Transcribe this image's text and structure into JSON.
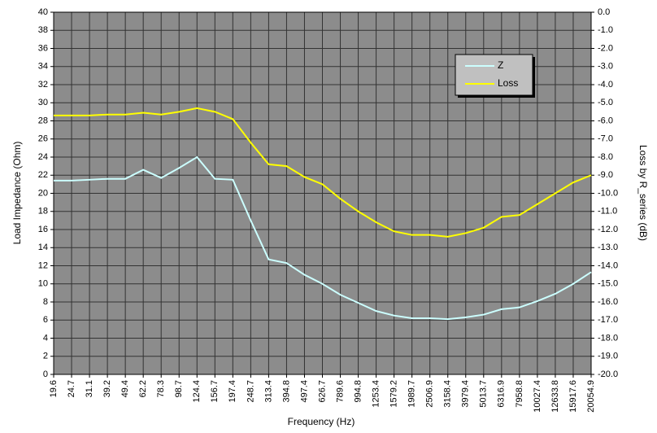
{
  "chart_data": {
    "type": "line",
    "xlabel": "Frequency (Hz)",
    "ylabel": "Load Impedance (Ohm)",
    "y2label": "Loss by R_series (dB)",
    "categories": [
      "19.6",
      "24.7",
      "31.1",
      "39.2",
      "49.4",
      "62.2",
      "78.3",
      "98.7",
      "124.4",
      "156.7",
      "197.4",
      "248.7",
      "313.4",
      "394.8",
      "497.4",
      "626.7",
      "789.6",
      "994.8",
      "1253.4",
      "1579.2",
      "1989.7",
      "2506.9",
      "3158.4",
      "3979.4",
      "5013.7",
      "6316.9",
      "7958.8",
      "10027.4",
      "12633.8",
      "15917.6",
      "20054.9"
    ],
    "series": [
      {
        "name": "Z",
        "color": "#ccffff",
        "values": [
          21.4,
          21.4,
          21.5,
          21.6,
          21.6,
          22.6,
          21.7,
          22.8,
          24,
          21.6,
          21.5,
          17,
          12.7,
          12.3,
          11,
          10,
          8.8,
          7.9,
          7,
          6.5,
          6.2,
          6.2,
          6.1,
          6.3,
          6.6,
          7.2,
          7.4,
          8.1,
          8.9,
          10,
          11.3
        ]
      },
      {
        "name": "Loss",
        "color": "#ffff00",
        "axis": "y2",
        "values": [
          -5.7,
          -5.7,
          -5.7,
          -5.65,
          -5.65,
          -5.55,
          -5.65,
          -5.5,
          -5.3,
          -5.5,
          -5.9,
          -7.2,
          -8.4,
          -8.5,
          -9.1,
          -9.5,
          -10.3,
          -11,
          -11.6,
          -12.1,
          -12.3,
          -12.3,
          -12.4,
          -12.2,
          -11.9,
          -11.3,
          -11.2,
          -10.6,
          -10,
          -9.4,
          -9
        ]
      }
    ],
    "ylim": [
      0,
      40
    ],
    "yticks": [
      0,
      2,
      4,
      6,
      8,
      10,
      12,
      14,
      16,
      18,
      20,
      22,
      24,
      26,
      28,
      30,
      32,
      34,
      36,
      38,
      40
    ],
    "y2lim": [
      -20,
      0
    ],
    "y2ticks": [
      {
        "value": 0,
        "label": "0.0"
      },
      {
        "value": -1,
        "label": "-1.0"
      },
      {
        "value": -2,
        "label": "-2.0"
      },
      {
        "value": -3,
        "label": "-3.0"
      },
      {
        "value": -4,
        "label": "-4.0"
      },
      {
        "value": -5,
        "label": "-5.0"
      },
      {
        "value": -6,
        "label": "-6.0"
      },
      {
        "value": -7,
        "label": "-7.0"
      },
      {
        "value": -8,
        "label": "-8.0"
      },
      {
        "value": -9,
        "label": "-9.0"
      },
      {
        "value": -10,
        "label": "-10.0"
      },
      {
        "value": -11,
        "label": "-11.0"
      },
      {
        "value": -12,
        "label": "-12.0"
      },
      {
        "value": -13,
        "label": "-13.0"
      },
      {
        "value": -14,
        "label": "-14.0"
      },
      {
        "value": -15,
        "label": "-15.0"
      },
      {
        "value": -16,
        "label": "-16.0"
      },
      {
        "value": -17,
        "label": "-17.0"
      },
      {
        "value": -18,
        "label": "-18.0"
      },
      {
        "value": -19,
        "label": "-19.0"
      },
      {
        "value": -20,
        "label": "-20.0"
      }
    ],
    "grid": true,
    "legend": "upper right"
  }
}
